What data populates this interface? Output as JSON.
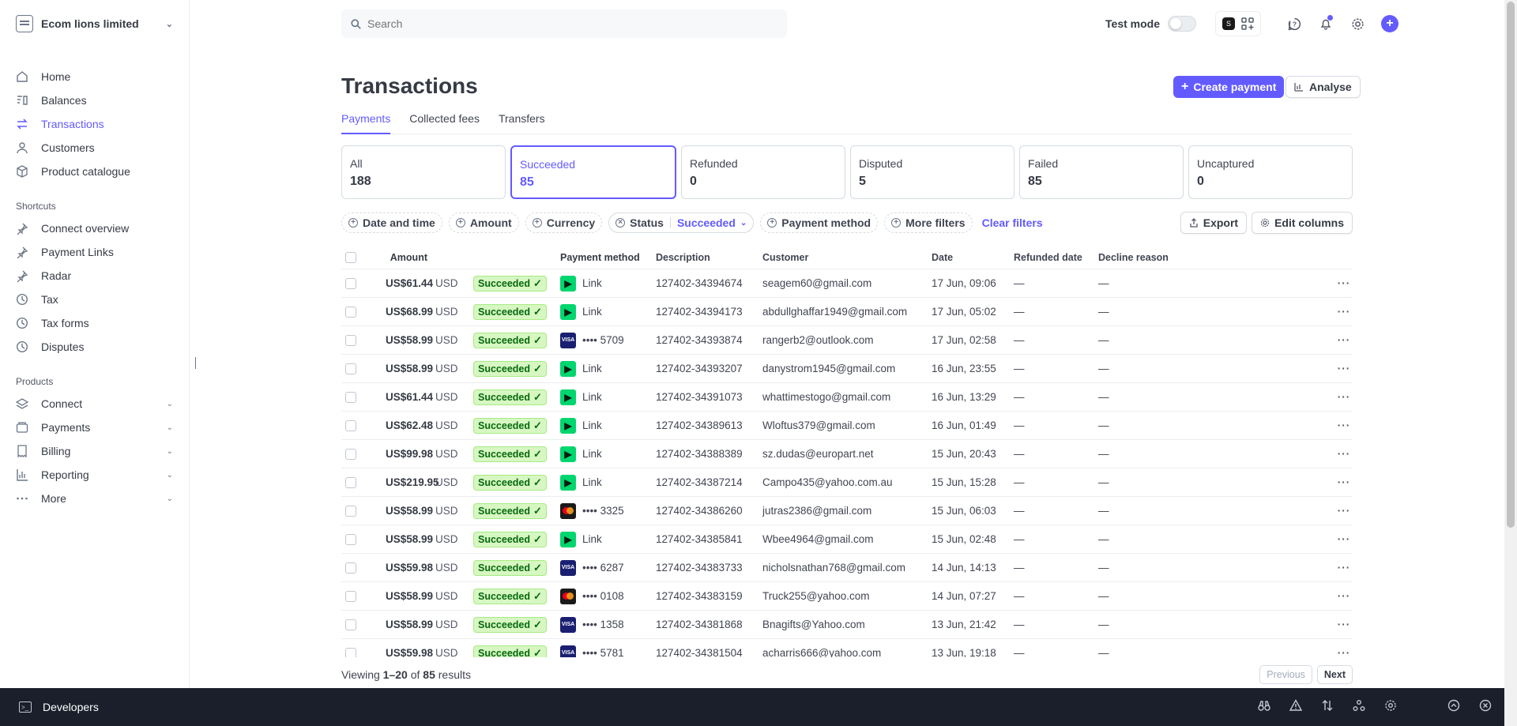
{
  "account": {
    "name": "Ecom lions limited"
  },
  "sidebar": {
    "main": [
      {
        "label": "Home",
        "icon": "home-icon"
      },
      {
        "label": "Balances",
        "icon": "balances-icon"
      },
      {
        "label": "Transactions",
        "icon": "transactions-icon",
        "active": true
      },
      {
        "label": "Customers",
        "icon": "customers-icon"
      },
      {
        "label": "Product catalogue",
        "icon": "product-icon"
      }
    ],
    "shortcuts_title": "Shortcuts",
    "shortcuts": [
      {
        "label": "Connect overview",
        "icon": "pin-icon"
      },
      {
        "label": "Payment Links",
        "icon": "pin-icon"
      },
      {
        "label": "Radar",
        "icon": "pin-icon"
      },
      {
        "label": "Tax",
        "icon": "clock-icon"
      },
      {
        "label": "Tax forms",
        "icon": "clock-icon"
      },
      {
        "label": "Disputes",
        "icon": "clock-icon"
      }
    ],
    "products_title": "Products",
    "products": [
      {
        "label": "Connect",
        "icon": "connect-icon"
      },
      {
        "label": "Payments",
        "icon": "payments-icon"
      },
      {
        "label": "Billing",
        "icon": "billing-icon"
      },
      {
        "label": "Reporting",
        "icon": "reporting-icon"
      },
      {
        "label": "More",
        "icon": "more-icon"
      }
    ]
  },
  "search": {
    "placeholder": "Search"
  },
  "topbar": {
    "test_mode": "Test mode",
    "app_letter": "S"
  },
  "page": {
    "title": "Transactions",
    "create_payment": "Create payment",
    "analyse": "Analyse",
    "tabs": [
      "Payments",
      "Collected fees",
      "Transfers"
    ]
  },
  "cards": [
    {
      "label": "All",
      "count": "188"
    },
    {
      "label": "Succeeded",
      "count": "85",
      "active": true
    },
    {
      "label": "Refunded",
      "count": "0"
    },
    {
      "label": "Disputed",
      "count": "5"
    },
    {
      "label": "Failed",
      "count": "85"
    },
    {
      "label": "Uncaptured",
      "count": "0"
    }
  ],
  "filters": {
    "date": "Date and time",
    "amount": "Amount",
    "currency": "Currency",
    "status": "Status",
    "status_value": "Succeeded",
    "payment_method": "Payment method",
    "more": "More filters",
    "clear": "Clear filters",
    "export": "Export",
    "edit_columns": "Edit columns"
  },
  "table": {
    "headers": {
      "amount": "Amount",
      "payment_method": "Payment method",
      "description": "Description",
      "customer": "Customer",
      "date": "Date",
      "refunded_date": "Refunded date",
      "decline_reason": "Decline reason"
    },
    "rows": [
      {
        "amount": "US$61.44",
        "currency": "USD",
        "status": "Succeeded",
        "pm_type": "link",
        "pm": "Link",
        "description": "127402-34394674",
        "customer": "seagem60@gmail.com",
        "date": "17 Jun, 09:06",
        "refunded": "—",
        "decline": "—"
      },
      {
        "amount": "US$68.99",
        "currency": "USD",
        "status": "Succeeded",
        "pm_type": "link",
        "pm": "Link",
        "description": "127402-34394173",
        "customer": "abdullghaffar1949@gmail.com",
        "date": "17 Jun, 05:02",
        "refunded": "—",
        "decline": "—"
      },
      {
        "amount": "US$58.99",
        "currency": "USD",
        "status": "Succeeded",
        "pm_type": "visa",
        "pm": "•••• 5709",
        "description": "127402-34393874",
        "customer": "rangerb2@outlook.com",
        "date": "17 Jun, 02:58",
        "refunded": "—",
        "decline": "—"
      },
      {
        "amount": "US$58.99",
        "currency": "USD",
        "status": "Succeeded",
        "pm_type": "link",
        "pm": "Link",
        "description": "127402-34393207",
        "customer": "danystrom1945@gmail.com",
        "date": "16 Jun, 23:55",
        "refunded": "—",
        "decline": "—"
      },
      {
        "amount": "US$61.44",
        "currency": "USD",
        "status": "Succeeded",
        "pm_type": "link",
        "pm": "Link",
        "description": "127402-34391073",
        "customer": "whattimestogo@gmail.com",
        "date": "16 Jun, 13:29",
        "refunded": "—",
        "decline": "—"
      },
      {
        "amount": "US$62.48",
        "currency": "USD",
        "status": "Succeeded",
        "pm_type": "link",
        "pm": "Link",
        "description": "127402-34389613",
        "customer": "Wloftus379@gmail.com",
        "date": "16 Jun, 01:49",
        "refunded": "—",
        "decline": "—"
      },
      {
        "amount": "US$99.98",
        "currency": "USD",
        "status": "Succeeded",
        "pm_type": "link",
        "pm": "Link",
        "description": "127402-34388389",
        "customer": "sz.dudas@europart.net",
        "date": "15 Jun, 20:43",
        "refunded": "—",
        "decline": "—"
      },
      {
        "amount": "US$219.95",
        "currency": "USD",
        "status": "Succeeded",
        "pm_type": "link",
        "pm": "Link",
        "description": "127402-34387214",
        "customer": "Campo435@yahoo.com.au",
        "date": "15 Jun, 15:28",
        "refunded": "—",
        "decline": "—"
      },
      {
        "amount": "US$58.99",
        "currency": "USD",
        "status": "Succeeded",
        "pm_type": "mc",
        "pm": "•••• 3325",
        "description": "127402-34386260",
        "customer": "jutras2386@gmail.com",
        "date": "15 Jun, 06:03",
        "refunded": "—",
        "decline": "—"
      },
      {
        "amount": "US$58.99",
        "currency": "USD",
        "status": "Succeeded",
        "pm_type": "link",
        "pm": "Link",
        "description": "127402-34385841",
        "customer": "Wbee4964@gmail.com",
        "date": "15 Jun, 02:48",
        "refunded": "—",
        "decline": "—"
      },
      {
        "amount": "US$59.98",
        "currency": "USD",
        "status": "Succeeded",
        "pm_type": "visa",
        "pm": "•••• 6287",
        "description": "127402-34383733",
        "customer": "nicholsnathan768@gmail.com",
        "date": "14 Jun, 14:13",
        "refunded": "—",
        "decline": "—"
      },
      {
        "amount": "US$58.99",
        "currency": "USD",
        "status": "Succeeded",
        "pm_type": "mc",
        "pm": "•••• 0108",
        "description": "127402-34383159",
        "customer": "Truck255@yahoo.com",
        "date": "14 Jun, 07:27",
        "refunded": "—",
        "decline": "—"
      },
      {
        "amount": "US$58.99",
        "currency": "USD",
        "status": "Succeeded",
        "pm_type": "visa",
        "pm": "•••• 1358",
        "description": "127402-34381868",
        "customer": "Bnagifts@Yahoo.com",
        "date": "13 Jun, 21:42",
        "refunded": "—",
        "decline": "—"
      },
      {
        "amount": "US$59.98",
        "currency": "USD",
        "status": "Succeeded",
        "pm_type": "visa",
        "pm": "•••• 5781",
        "description": "127402-34381504",
        "customer": "acharris666@yahoo.com",
        "date": "13 Jun, 19:18",
        "refunded": "—",
        "decline": "—"
      }
    ]
  },
  "footer": {
    "viewing": "Viewing",
    "range": "1–20",
    "of": "of",
    "total": "85",
    "results": "results",
    "previous": "Previous",
    "next": "Next"
  },
  "devbar": {
    "label": "Developers"
  },
  "colors": {
    "accent": "#635bff",
    "success_bg": "#d7f7c2",
    "success_text": "#05690d",
    "link_green": "#00d66f",
    "devbar_bg": "#1a1f2b"
  }
}
